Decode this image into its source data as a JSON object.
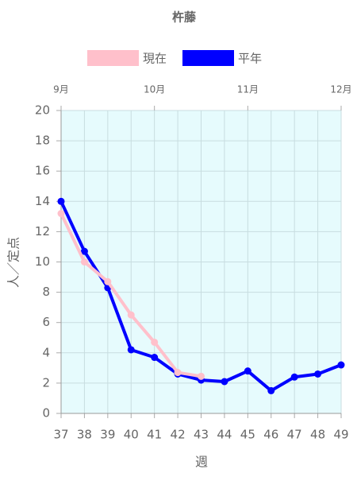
{
  "chart_data": {
    "type": "line",
    "title": "杵藤",
    "x": [
      37,
      38,
      39,
      40,
      41,
      42,
      43,
      44,
      45,
      46,
      47,
      48,
      49
    ],
    "series": [
      {
        "name": "現在",
        "color": "#ffc0cb",
        "values": [
          13.2,
          10.0,
          8.7,
          6.5,
          4.7,
          2.7,
          2.45,
          null,
          null,
          null,
          null,
          null,
          null
        ]
      },
      {
        "name": "平年",
        "color": "#0000ff",
        "values": [
          14.0,
          10.7,
          8.3,
          4.2,
          3.7,
          2.6,
          2.2,
          2.1,
          2.8,
          1.5,
          2.4,
          2.6,
          3.2
        ]
      }
    ],
    "xlim": [
      37,
      49
    ],
    "xticks": [
      37,
      38,
      39,
      40,
      41,
      42,
      43,
      44,
      45,
      46,
      47,
      48,
      49
    ],
    "x2ticks": [
      {
        "value": 37,
        "label": "9月"
      },
      {
        "value": 41,
        "label": "10月"
      },
      {
        "value": 45,
        "label": "11月"
      },
      {
        "value": 49,
        "label": "12月"
      }
    ],
    "ylim": [
      0,
      20
    ],
    "yticks": [
      0,
      2,
      4,
      6,
      8,
      10,
      12,
      14,
      16,
      18,
      20
    ],
    "xlabel": "週",
    "ylabel": "人／定点",
    "grid": true,
    "legend": "top"
  }
}
